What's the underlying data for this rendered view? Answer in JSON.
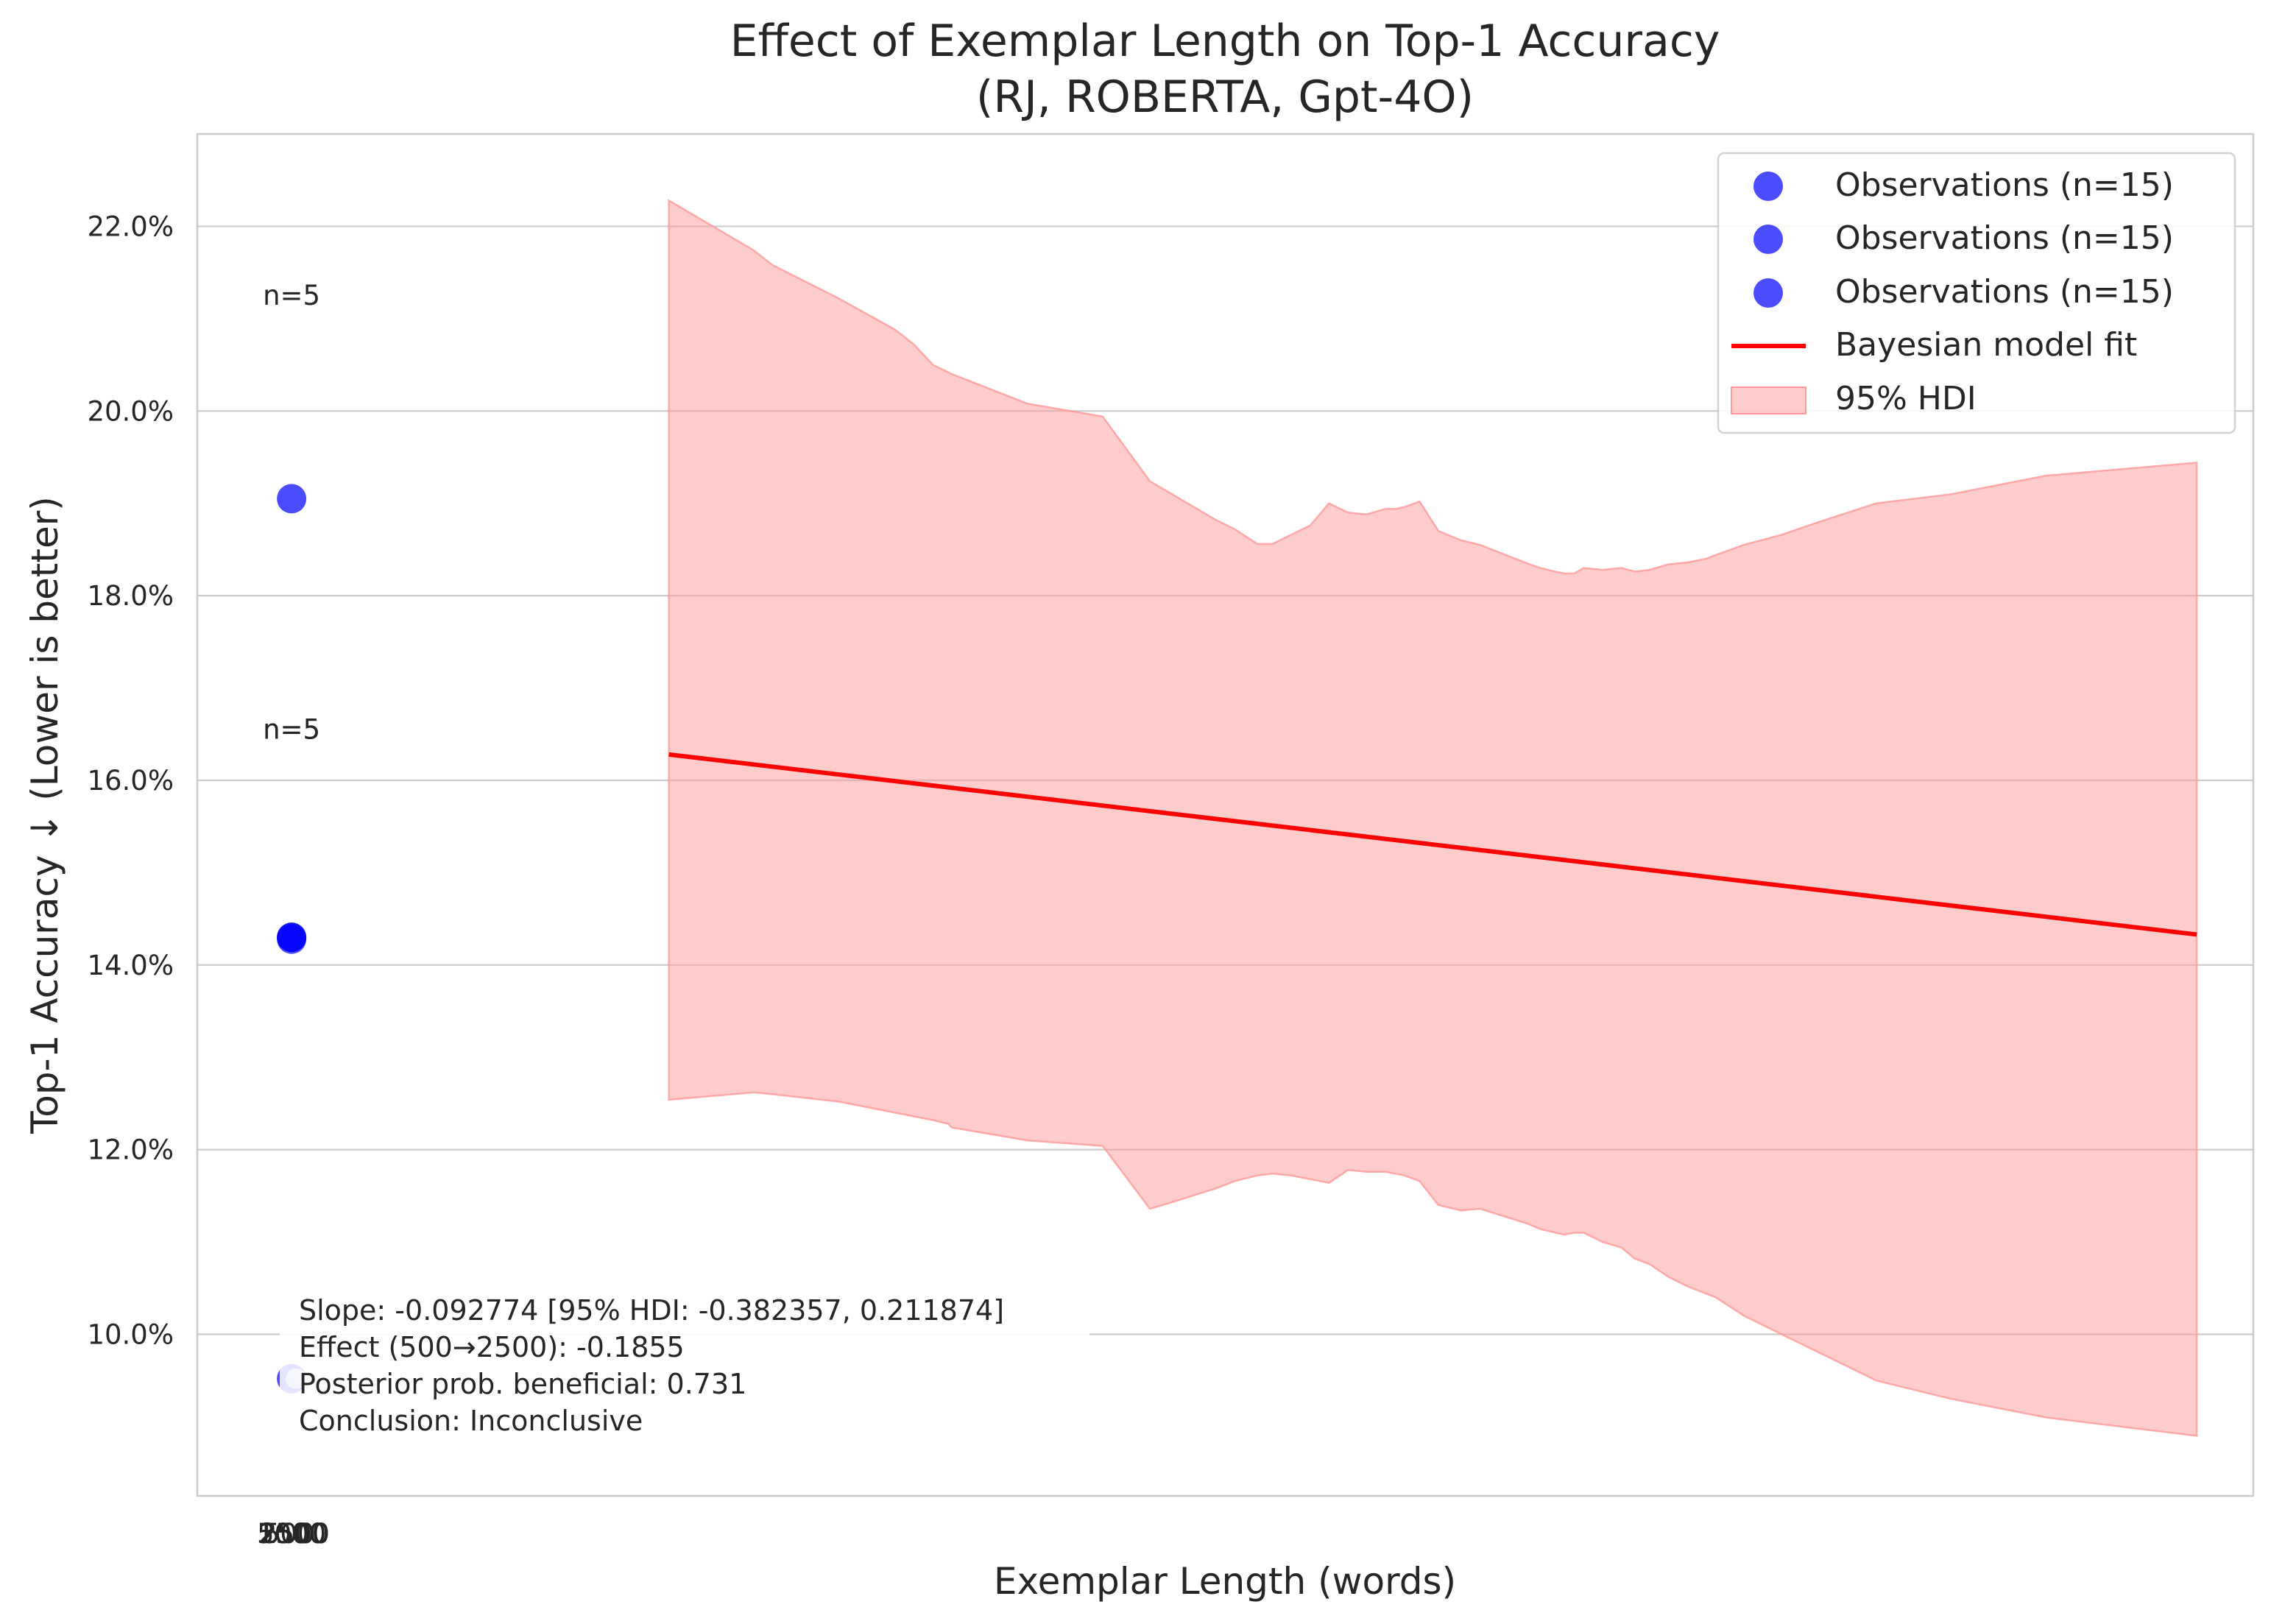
{
  "chart_data": {
    "type": "scatter",
    "title": "Effect of Exemplar Length on Top-1 Accuracy",
    "subtitle": "(RJ, ROBERTA, Gpt-4O)",
    "xlabel": "Exemplar Length (words)",
    "ylabel": "Top-1 Accuracy ↓ (Lower is better)",
    "y_tick_labels": [
      "10.0%",
      "12.0%",
      "14.0%",
      "16.0%",
      "18.0%",
      "20.0%",
      "22.0%"
    ],
    "y_ticks": [
      10,
      12,
      14,
      16,
      18,
      20,
      22
    ],
    "ylim": [
      8.25,
      23.0
    ],
    "xlim": [
      0,
      10.9
    ],
    "x_tick_labels": [
      "250",
      "500",
      "1000",
      "2500",
      "5000",
      "0"
    ],
    "grid": true,
    "series": [
      {
        "name": "Observations (n=15)",
        "kind": "scatter",
        "color": "#0000ff",
        "points": [
          {
            "x": 0.5,
            "y": 19.05
          },
          {
            "x": 0.5,
            "y": 14.28
          },
          {
            "x": 0.5,
            "y": 9.52
          }
        ]
      },
      {
        "name": "Observations (n=15)",
        "kind": "scatter",
        "color": "#0000ff",
        "points": [
          {
            "x": 0.5,
            "y": 14.3
          }
        ]
      },
      {
        "name": "Observations (n=15)",
        "kind": "scatter",
        "color": "#0000ff",
        "points": [
          {
            "x": 0.5,
            "y": 14.3
          }
        ]
      },
      {
        "name": "Bayesian model fit",
        "kind": "line",
        "color": "#ff0000",
        "x": [
          2.5,
          10.6
        ],
        "y": [
          16.28,
          14.33
        ]
      },
      {
        "name": "95% HDI",
        "kind": "band",
        "color": "#ff9999",
        "x": [
          2.5,
          2.95,
          3.05,
          3.4,
          3.7,
          3.8,
          3.9,
          3.98,
          4.0,
          4.4,
          4.8,
          5.05,
          5.15,
          5.4,
          5.5,
          5.62,
          5.7,
          5.8,
          5.9,
          6.0,
          6.1,
          6.2,
          6.3,
          6.35,
          6.4,
          6.48,
          6.58,
          6.7,
          6.8,
          7.05,
          7.12,
          7.2,
          7.25,
          7.3,
          7.35,
          7.45,
          7.55,
          7.62,
          7.7,
          7.8,
          7.9,
          8.0,
          8.05,
          8.2,
          8.4,
          8.6,
          8.9,
          9.3,
          9.8,
          10.6
        ],
        "upper": [
          22.28,
          21.74,
          21.58,
          21.22,
          20.88,
          20.72,
          20.5,
          20.42,
          20.4,
          20.08,
          19.94,
          19.24,
          19.12,
          18.82,
          18.72,
          18.56,
          18.56,
          18.66,
          18.76,
          19.0,
          18.9,
          18.88,
          18.94,
          18.94,
          18.96,
          19.02,
          18.7,
          18.6,
          18.55,
          18.35,
          18.3,
          18.26,
          18.24,
          18.24,
          18.3,
          18.28,
          18.3,
          18.26,
          18.28,
          18.34,
          18.36,
          18.4,
          18.44,
          18.55,
          18.66,
          18.8,
          19.0,
          19.1,
          19.3,
          19.44
        ],
        "lower": [
          12.54,
          12.62,
          12.6,
          12.52,
          12.4,
          12.36,
          12.32,
          12.28,
          12.24,
          12.1,
          12.04,
          11.36,
          11.42,
          11.58,
          11.66,
          11.72,
          11.74,
          11.72,
          11.68,
          11.64,
          11.78,
          11.76,
          11.76,
          11.74,
          11.72,
          11.66,
          11.4,
          11.34,
          11.36,
          11.2,
          11.14,
          11.1,
          11.08,
          11.1,
          11.1,
          11.0,
          10.94,
          10.82,
          10.76,
          10.62,
          10.52,
          10.44,
          10.4,
          10.2,
          10.0,
          9.8,
          9.5,
          9.3,
          9.1,
          8.9
        ]
      }
    ],
    "annotations": {
      "n_labels": [
        {
          "text": "n=5",
          "y": 21.15
        },
        {
          "text": "n=5",
          "y": 16.45
        },
        {
          "text": "n=5",
          "y": 16.45
        }
      ],
      "stats_box": [
        "Slope: -0.092774 [95% HDI: -0.382357, 0.211874]",
        "Effect (500→2500): -0.1855",
        "Posterior prob. beneficial: 0.731",
        "Conclusion: Inconclusive"
      ]
    },
    "legend_placement": "top-right"
  }
}
